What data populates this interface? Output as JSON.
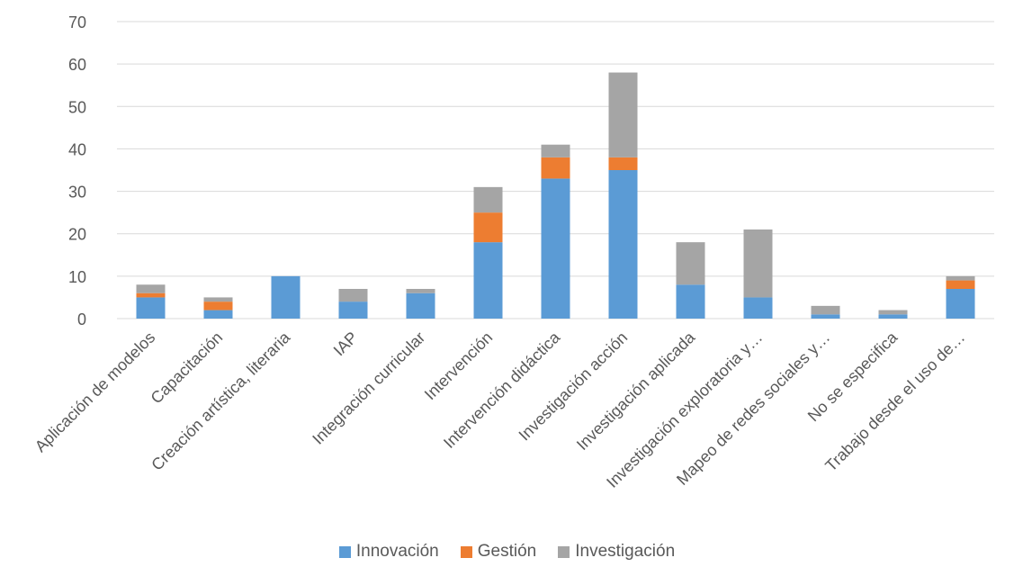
{
  "chart_data": {
    "type": "bar",
    "stacked": true,
    "categories": [
      "Aplicación de modelos",
      "Capacitación",
      "Creación artística, literaria",
      "IAP",
      "Integración curricular",
      "Intervención",
      "Intervención didáctica",
      "Investigación acción",
      "Investigación aplicada",
      "Investigación exploratoria y…",
      "Mapeo de redes sociales y…",
      "No se especifica",
      "Trabajo desde el uso de…"
    ],
    "series": [
      {
        "name": "Innovación",
        "color": "#5B9BD5",
        "values": [
          5,
          2,
          10,
          4,
          6,
          18,
          33,
          35,
          8,
          5,
          1,
          1,
          7
        ]
      },
      {
        "name": "Gestión",
        "color": "#ED7D31",
        "values": [
          1,
          2,
          0,
          0,
          0,
          7,
          5,
          3,
          0,
          0,
          0,
          0,
          2
        ]
      },
      {
        "name": "Investigación",
        "color": "#A5A5A5",
        "values": [
          2,
          1,
          0,
          3,
          1,
          6,
          3,
          20,
          10,
          16,
          2,
          1,
          1
        ]
      }
    ],
    "ylim": [
      0,
      70
    ],
    "yticks": [
      0,
      10,
      20,
      30,
      40,
      50,
      60,
      70
    ],
    "grid": true,
    "legend_position": "bottom"
  }
}
